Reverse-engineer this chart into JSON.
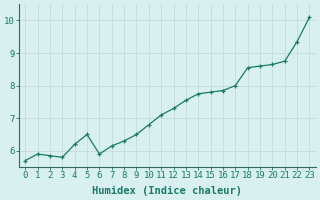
{
  "xlabel": "Humidex (Indice chaleur)",
  "x_values": [
    0,
    1,
    2,
    3,
    4,
    5,
    6,
    7,
    8,
    9,
    10,
    11,
    12,
    13,
    14,
    15,
    16,
    17,
    18,
    19,
    20,
    21,
    22,
    23
  ],
  "y_values": [
    5.7,
    5.9,
    5.85,
    5.8,
    6.2,
    6.5,
    5.9,
    6.15,
    6.3,
    6.5,
    6.8,
    7.1,
    7.3,
    7.55,
    7.75,
    7.8,
    7.85,
    8.0,
    8.55,
    8.6,
    8.65,
    8.75,
    9.35,
    10.1
  ],
  "line_color": "#1a7a6a",
  "marker": "+",
  "marker_size": 3,
  "bg_color": "#d8f0f0",
  "grid_color": "#c8dada",
  "tick_label_fontsize": 6.5,
  "xlabel_fontsize": 7.5,
  "ylim": [
    5.5,
    10.5
  ],
  "xlim": [
    -0.5,
    23.5
  ],
  "yticks": [
    6,
    7,
    8,
    9,
    10
  ],
  "spine_color": "#336666"
}
